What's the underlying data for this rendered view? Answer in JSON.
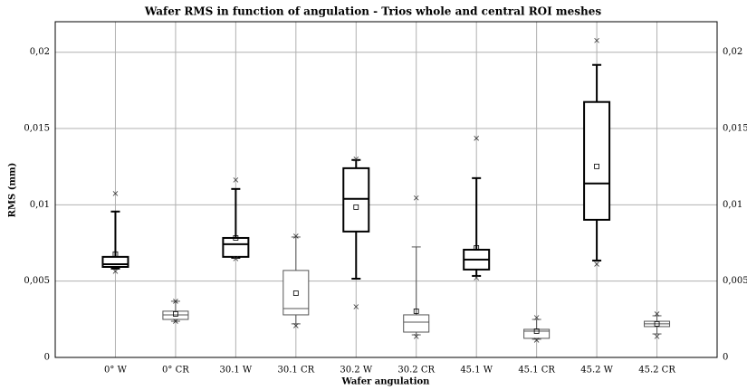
{
  "chart_data": {
    "type": "box",
    "title": "Wafer RMS in function of angulation  - Trios whole and central ROI meshes",
    "x_label": "Wafer angulation",
    "y_label": "RMS (mm)",
    "categories": [
      "0° W",
      "0° CR",
      "30.1 W",
      "30.1 CR",
      "30.2 W",
      "30.2 CR",
      "45.1 W",
      "45.1 CR",
      "45.2 W",
      "45.2 CR"
    ],
    "boxes": [
      {
        "whisker_low": 0.00582,
        "q1": 0.00593,
        "median": 0.00611,
        "q3": 0.00659,
        "whisker_high": 0.00956,
        "mean": 0.00677,
        "min": 0.00564,
        "max": 0.01074,
        "color": "#000000",
        "line_width": 2
      },
      {
        "whisker_low": 0.00237,
        "q1": 0.00249,
        "median": 0.00279,
        "q3": 0.00303,
        "whisker_high": 0.00368,
        "mean": 0.00285,
        "min": 0.00237,
        "max": 0.00368,
        "color": "#555555",
        "line_width": 1
      },
      {
        "whisker_low": 0.00653,
        "q1": 0.00659,
        "median": 0.00742,
        "q3": 0.00783,
        "whisker_high": 0.01104,
        "mean": 0.00783,
        "min": 0.00647,
        "max": 0.01163,
        "color": "#000000",
        "line_width": 2
      },
      {
        "whisker_low": 0.0022,
        "q1": 0.00279,
        "median": 0.0032,
        "q3": 0.0057,
        "whisker_high": 0.00789,
        "mean": 0.00421,
        "min": 0.00208,
        "max": 0.00795,
        "color": "#555555",
        "line_width": 1
      },
      {
        "whisker_low": 0.00516,
        "q1": 0.00825,
        "median": 0.01039,
        "q3": 0.0124,
        "whisker_high": 0.01294,
        "mean": 0.00985,
        "min": 0.00332,
        "max": 0.013,
        "color": "#000000",
        "line_width": 2
      },
      {
        "whisker_low": 0.00148,
        "q1": 0.00166,
        "median": 0.00231,
        "q3": 0.00279,
        "whisker_high": 0.00724,
        "mean": 0.00303,
        "min": 0.00137,
        "max": 0.01045,
        "color": "#555555",
        "line_width": 1
      },
      {
        "whisker_low": 0.00534,
        "q1": 0.00576,
        "median": 0.00641,
        "q3": 0.00706,
        "whisker_high": 0.01175,
        "mean": 0.00718,
        "min": 0.00522,
        "max": 0.01436,
        "color": "#000000",
        "line_width": 2
      },
      {
        "whisker_low": 0.00119,
        "q1": 0.00125,
        "median": 0.00172,
        "q3": 0.00184,
        "whisker_high": 0.00249,
        "mean": 0.00172,
        "min": 0.00113,
        "max": 0.00261,
        "color": "#555555",
        "line_width": 1
      },
      {
        "whisker_low": 0.00635,
        "q1": 0.00902,
        "median": 0.0114,
        "q3": 0.01674,
        "whisker_high": 0.01917,
        "mean": 0.01252,
        "min": 0.00611,
        "max": 0.02077,
        "color": "#000000",
        "line_width": 2
      },
      {
        "whisker_low": 0.00154,
        "q1": 0.00202,
        "median": 0.0022,
        "q3": 0.00237,
        "whisker_high": 0.00273,
        "mean": 0.0022,
        "min": 0.00137,
        "max": 0.00285,
        "color": "#555555",
        "line_width": 1
      }
    ],
    "ylim": [
      0,
      0.022
    ],
    "yticks": [
      0,
      {
        "value": 0.005,
        "label": "0,005"
      },
      {
        "value": 0.01,
        "label": "0,01"
      },
      {
        "value": 0.015,
        "label": "0,015"
      },
      {
        "value": 0.02,
        "label": "0,02"
      }
    ],
    "grid": true
  }
}
